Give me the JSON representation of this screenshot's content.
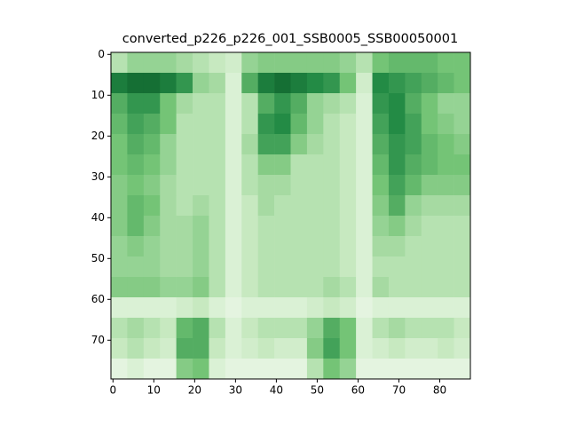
{
  "chart_data": {
    "type": "heatmap",
    "title": "converted_p226_p226_001_SSB0005_SSB00050001",
    "colors": [
      "#f7fcf5",
      "#c7e9c0",
      "#74c476",
      "#238b45",
      "#00441b"
    ],
    "xlim": [
      -0.5,
      87.5
    ],
    "ylim": [
      79.5,
      -0.5
    ],
    "xticks": [
      0,
      10,
      20,
      30,
      40,
      50,
      60,
      70,
      80
    ],
    "yticks": [
      0,
      10,
      20,
      30,
      40,
      50,
      60,
      70
    ],
    "values": [
      [
        0.3,
        0.4,
        0.4,
        0.4,
        0.35,
        0.3,
        0.25,
        0.2,
        0.4,
        0.45,
        0.45,
        0.45,
        0.45,
        0.45,
        0.4,
        0.3,
        0.5,
        0.55,
        0.55,
        0.55,
        0.5,
        0.5
      ],
      [
        0.8,
        0.85,
        0.85,
        0.8,
        0.7,
        0.4,
        0.35,
        0.15,
        0.6,
        0.8,
        0.85,
        0.8,
        0.75,
        0.7,
        0.5,
        0.2,
        0.75,
        0.7,
        0.65,
        0.6,
        0.55,
        0.5
      ],
      [
        0.6,
        0.7,
        0.7,
        0.5,
        0.35,
        0.3,
        0.3,
        0.15,
        0.3,
        0.6,
        0.7,
        0.6,
        0.4,
        0.35,
        0.3,
        0.15,
        0.7,
        0.75,
        0.6,
        0.5,
        0.4,
        0.4
      ],
      [
        0.55,
        0.65,
        0.6,
        0.5,
        0.3,
        0.3,
        0.3,
        0.15,
        0.3,
        0.7,
        0.75,
        0.55,
        0.4,
        0.3,
        0.25,
        0.15,
        0.65,
        0.75,
        0.65,
        0.5,
        0.45,
        0.4
      ],
      [
        0.5,
        0.6,
        0.55,
        0.4,
        0.3,
        0.3,
        0.3,
        0.15,
        0.35,
        0.65,
        0.65,
        0.45,
        0.35,
        0.3,
        0.25,
        0.15,
        0.6,
        0.7,
        0.65,
        0.55,
        0.5,
        0.45
      ],
      [
        0.5,
        0.55,
        0.5,
        0.4,
        0.3,
        0.3,
        0.3,
        0.15,
        0.3,
        0.45,
        0.45,
        0.3,
        0.3,
        0.3,
        0.25,
        0.15,
        0.55,
        0.7,
        0.6,
        0.55,
        0.5,
        0.5
      ],
      [
        0.45,
        0.5,
        0.45,
        0.35,
        0.3,
        0.3,
        0.3,
        0.15,
        0.3,
        0.35,
        0.35,
        0.3,
        0.3,
        0.3,
        0.25,
        0.15,
        0.5,
        0.65,
        0.55,
        0.45,
        0.45,
        0.45
      ],
      [
        0.45,
        0.55,
        0.5,
        0.35,
        0.3,
        0.35,
        0.3,
        0.15,
        0.25,
        0.35,
        0.3,
        0.3,
        0.3,
        0.3,
        0.25,
        0.15,
        0.45,
        0.6,
        0.4,
        0.35,
        0.35,
        0.35
      ],
      [
        0.45,
        0.55,
        0.45,
        0.35,
        0.35,
        0.4,
        0.3,
        0.15,
        0.25,
        0.3,
        0.3,
        0.3,
        0.3,
        0.3,
        0.25,
        0.15,
        0.4,
        0.45,
        0.35,
        0.3,
        0.3,
        0.3
      ],
      [
        0.4,
        0.45,
        0.4,
        0.35,
        0.35,
        0.4,
        0.3,
        0.15,
        0.25,
        0.3,
        0.3,
        0.3,
        0.3,
        0.3,
        0.25,
        0.15,
        0.35,
        0.35,
        0.3,
        0.3,
        0.3,
        0.3
      ],
      [
        0.4,
        0.4,
        0.4,
        0.35,
        0.35,
        0.4,
        0.3,
        0.15,
        0.25,
        0.3,
        0.3,
        0.3,
        0.3,
        0.3,
        0.25,
        0.15,
        0.3,
        0.3,
        0.3,
        0.3,
        0.3,
        0.3
      ],
      [
        0.45,
        0.45,
        0.45,
        0.4,
        0.4,
        0.45,
        0.3,
        0.15,
        0.25,
        0.3,
        0.3,
        0.3,
        0.3,
        0.35,
        0.3,
        0.15,
        0.35,
        0.3,
        0.3,
        0.3,
        0.3,
        0.3
      ],
      [
        0.15,
        0.15,
        0.15,
        0.15,
        0.2,
        0.25,
        0.15,
        0.1,
        0.15,
        0.15,
        0.15,
        0.15,
        0.2,
        0.25,
        0.2,
        0.1,
        0.15,
        0.15,
        0.15,
        0.15,
        0.15,
        0.15
      ],
      [
        0.3,
        0.35,
        0.3,
        0.25,
        0.55,
        0.6,
        0.3,
        0.15,
        0.25,
        0.3,
        0.3,
        0.3,
        0.4,
        0.6,
        0.5,
        0.15,
        0.3,
        0.35,
        0.3,
        0.3,
        0.3,
        0.25
      ],
      [
        0.25,
        0.3,
        0.25,
        0.2,
        0.6,
        0.6,
        0.25,
        0.15,
        0.2,
        0.25,
        0.2,
        0.2,
        0.45,
        0.65,
        0.5,
        0.15,
        0.2,
        0.25,
        0.2,
        0.2,
        0.25,
        0.2
      ],
      [
        0.1,
        0.15,
        0.1,
        0.1,
        0.45,
        0.5,
        0.15,
        0.1,
        0.1,
        0.1,
        0.1,
        0.1,
        0.3,
        0.5,
        0.4,
        0.1,
        0.1,
        0.1,
        0.1,
        0.1,
        0.1,
        0.1
      ]
    ]
  }
}
